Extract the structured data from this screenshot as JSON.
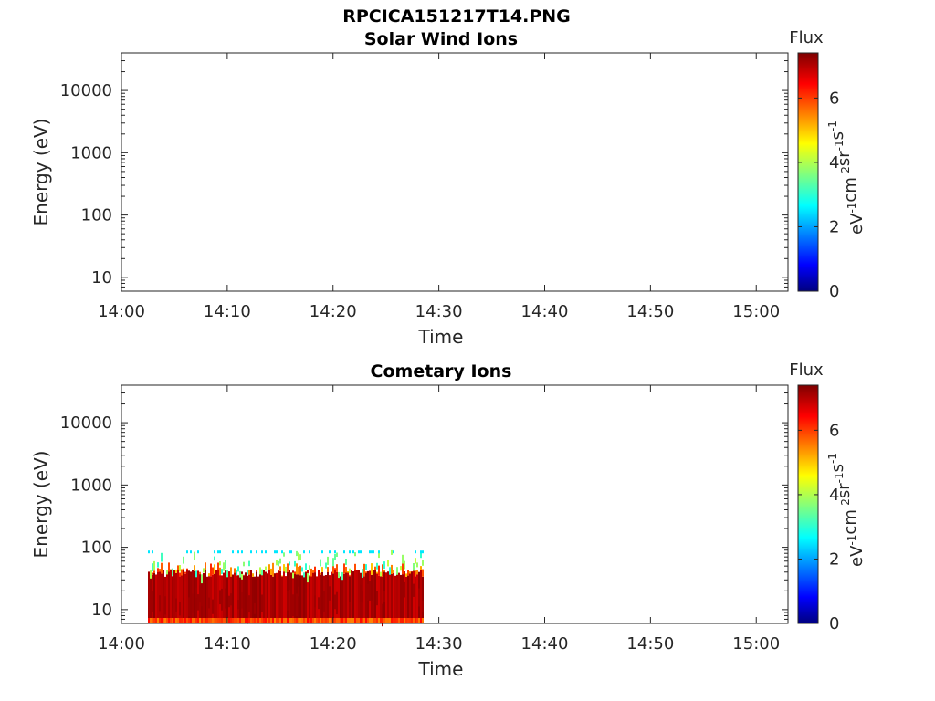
{
  "figure_title": "RPCICA151217T14.PNG",
  "chart_data": [
    {
      "type": "heatmap",
      "title": "Solar Wind Ions",
      "xlabel": "Time",
      "ylabel": "Energy (eV)",
      "x_ticks": [
        "14:00",
        "14:10",
        "14:20",
        "14:30",
        "14:40",
        "14:50",
        "15:00"
      ],
      "x_range_minutes": [
        0,
        63
      ],
      "y_scale": "log",
      "y_ticks": [
        "10",
        "100",
        "1000",
        "10000"
      ],
      "y_range": [
        6,
        40000
      ],
      "colorbar": {
        "title": "Flux",
        "label_base": "eV",
        "ticks": [
          "0",
          "2",
          "4",
          "6"
        ],
        "range": [
          0,
          7.4
        ],
        "colormap": "jet"
      },
      "data_regions": []
    },
    {
      "type": "heatmap",
      "title": "Cometary Ions",
      "xlabel": "Time",
      "ylabel": "Energy (eV)",
      "x_ticks": [
        "14:00",
        "14:10",
        "14:20",
        "14:30",
        "14:40",
        "14:50",
        "15:00"
      ],
      "x_range_minutes": [
        0,
        63
      ],
      "y_scale": "log",
      "y_ticks": [
        "10",
        "100",
        "1000",
        "10000"
      ],
      "y_range": [
        6,
        40000
      ],
      "colorbar": {
        "title": "Flux",
        "label_base": "eV",
        "ticks": [
          "0",
          "2",
          "4",
          "6"
        ],
        "range": [
          0,
          7.4
        ],
        "colormap": "jet"
      },
      "data_regions": [
        {
          "t_start_min": 2.5,
          "t_end_min": 28.5,
          "e_min": 6,
          "e_max": 80,
          "flux_core": 7.0,
          "flux_top": 3.0
        }
      ]
    }
  ]
}
